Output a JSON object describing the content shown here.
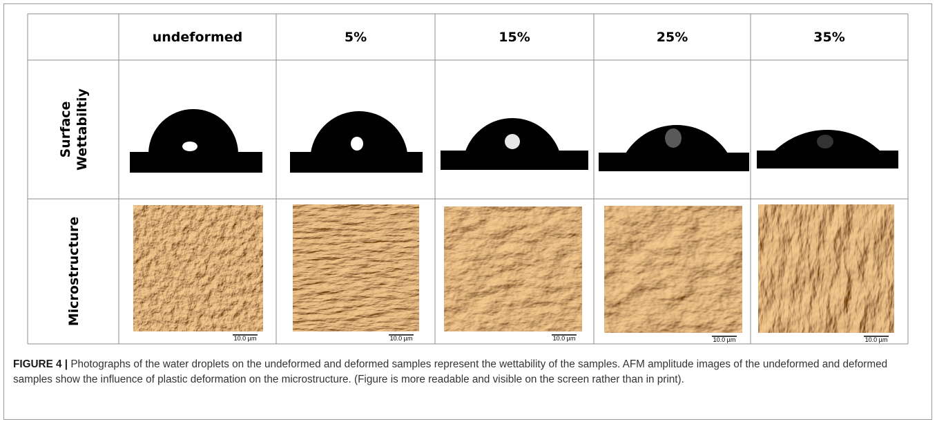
{
  "table": {
    "columns": [
      "undeformed",
      "5%",
      "15%",
      "25%",
      "35%"
    ],
    "rows": [
      {
        "label": [
          "Surface",
          "Wettabiltiy"
        ]
      },
      {
        "label": [
          "Microstructure"
        ]
      }
    ],
    "scale_bars": [
      "10.0 µm",
      "10.0 µm",
      "10.0 µm",
      "10.0 µm",
      "10.0 µm"
    ]
  },
  "caption": {
    "label": "FIGURE 4 |",
    "text": "Photographs of the water droplets on the undeformed and deformed samples represent the wettability of the samples. AFM amplitude images of the undeformed and deformed samples show the influence of plastic deformation on the microstructure. (Figure is more readable and visible on the screen rather than in print)."
  }
}
